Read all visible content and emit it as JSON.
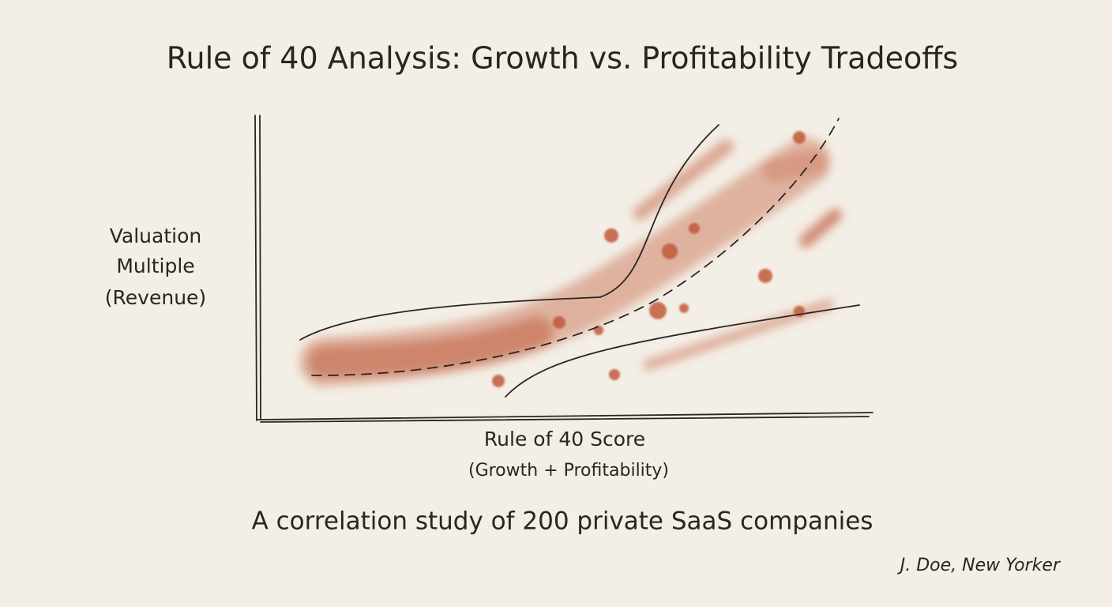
{
  "title": "Rule of 40 Analysis: Growth vs. Profitability Tradeoffs",
  "y_axis_label": [
    "Valuation",
    "Multiple",
    "(Revenue)"
  ],
  "x_axis_label": [
    "Rule of 40 Score",
    "(Growth + Profitability)"
  ],
  "subtitle": "A correlation study of 200 private SaaS companies",
  "credit": "J. Doe, New Yorker"
}
